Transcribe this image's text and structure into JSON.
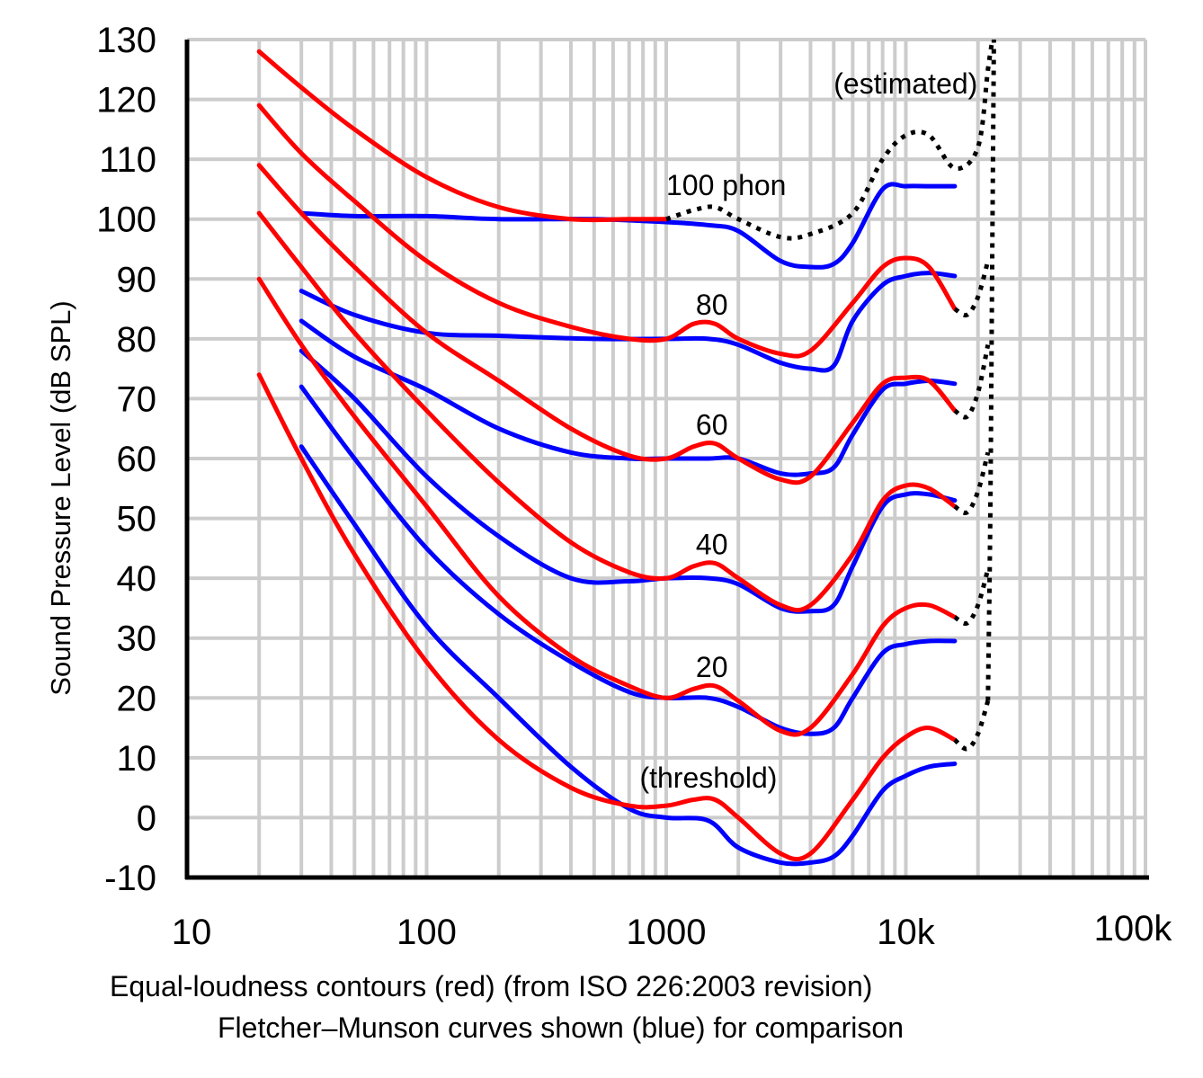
{
  "chart_data": {
    "type": "line",
    "xscale": "log",
    "xlim": [
      10,
      100000
    ],
    "ylim": [
      -10,
      130
    ],
    "grid": true,
    "ylabel": "Sound Pressure Level (dB SPL)",
    "xlabel": "",
    "caption_lines": [
      "Equal-loudness contours (red) (from ISO 226:2003 revision)",
      "Fletcher–Munson curves shown (blue) for comparison"
    ],
    "yticks": [
      {
        "v": 130,
        "label": "130"
      },
      {
        "v": 120,
        "label": "120"
      },
      {
        "v": 110,
        "label": "110"
      },
      {
        "v": 100,
        "label": "100"
      },
      {
        "v": 90,
        "label": "90"
      },
      {
        "v": 80,
        "label": "80"
      },
      {
        "v": 70,
        "label": "70"
      },
      {
        "v": 60,
        "label": "60"
      },
      {
        "v": 50,
        "label": "50"
      },
      {
        "v": 40,
        "label": "40"
      },
      {
        "v": 30,
        "label": "30"
      },
      {
        "v": 20,
        "label": "20"
      },
      {
        "v": 10,
        "label": "10"
      },
      {
        "v": 0,
        "label": "0"
      },
      {
        "v": -10,
        "label": "-10"
      }
    ],
    "xticks": [
      {
        "v": 10,
        "label": "10"
      },
      {
        "v": 100,
        "label": "100"
      },
      {
        "v": 1000,
        "label": "1000"
      },
      {
        "v": 10000,
        "label": "10k"
      },
      {
        "v": 100000,
        "label": "100k"
      }
    ],
    "annotations": [
      {
        "text": "(estimated)",
        "x": 5000,
        "y": 121
      },
      {
        "text": "100 phon",
        "x": 1000,
        "y": 104
      },
      {
        "text": "80",
        "x": 1550,
        "y": 84
      },
      {
        "text": "60",
        "x": 1550,
        "y": 64
      },
      {
        "text": "40",
        "x": 1550,
        "y": 44
      },
      {
        "text": "20",
        "x": 1550,
        "y": 23.5
      },
      {
        "text": "(threshold)",
        "x": 1500,
        "y": 5
      }
    ],
    "series": [
      {
        "group": "red",
        "color": "#ff0000",
        "points": [
          [
            20,
            128
          ],
          [
            30,
            122
          ],
          [
            50,
            115
          ],
          [
            100,
            107
          ],
          [
            200,
            102
          ],
          [
            400,
            100
          ],
          [
            700,
            100
          ],
          [
            1000,
            100
          ]
        ]
      },
      {
        "group": "red",
        "color": "#ff0000",
        "points": [
          [
            20,
            119
          ],
          [
            30,
            111
          ],
          [
            50,
            103
          ],
          [
            100,
            93
          ],
          [
            200,
            86
          ],
          [
            400,
            82
          ],
          [
            700,
            80
          ],
          [
            1000,
            80
          ],
          [
            1300,
            82.5
          ],
          [
            1600,
            82.5
          ],
          [
            2000,
            80
          ],
          [
            3000,
            77.5
          ],
          [
            4000,
            78
          ],
          [
            6000,
            86
          ],
          [
            8000,
            92
          ],
          [
            10000,
            93.5
          ],
          [
            12500,
            92
          ],
          [
            16000,
            85
          ]
        ]
      },
      {
        "group": "red",
        "color": "#ff0000",
        "points": [
          [
            20,
            109
          ],
          [
            30,
            101
          ],
          [
            50,
            92
          ],
          [
            100,
            81
          ],
          [
            200,
            73
          ],
          [
            400,
            65
          ],
          [
            700,
            60.5
          ],
          [
            1000,
            60
          ],
          [
            1300,
            62
          ],
          [
            1600,
            62.5
          ],
          [
            2000,
            60
          ],
          [
            3000,
            56.5
          ],
          [
            4000,
            57
          ],
          [
            6000,
            66
          ],
          [
            8000,
            72.5
          ],
          [
            10000,
            73.5
          ],
          [
            12500,
            73
          ],
          [
            16000,
            68
          ]
        ]
      },
      {
        "group": "red",
        "color": "#ff0000",
        "points": [
          [
            20,
            101
          ],
          [
            30,
            92
          ],
          [
            50,
            81
          ],
          [
            100,
            68
          ],
          [
            200,
            56
          ],
          [
            400,
            46
          ],
          [
            700,
            41
          ],
          [
            1000,
            40
          ],
          [
            1300,
            42
          ],
          [
            1600,
            42.5
          ],
          [
            2000,
            40
          ],
          [
            3000,
            35.5
          ],
          [
            4000,
            35.5
          ],
          [
            6000,
            44
          ],
          [
            8000,
            53
          ],
          [
            10000,
            55.5
          ],
          [
            12500,
            55
          ],
          [
            16000,
            52
          ]
        ]
      },
      {
        "group": "red",
        "color": "#ff0000",
        "points": [
          [
            20,
            90
          ],
          [
            30,
            79
          ],
          [
            50,
            67
          ],
          [
            100,
            52
          ],
          [
            200,
            37
          ],
          [
            400,
            27
          ],
          [
            700,
            22
          ],
          [
            1000,
            20
          ],
          [
            1300,
            21.5
          ],
          [
            1600,
            22
          ],
          [
            2000,
            19.5
          ],
          [
            3000,
            14.5
          ],
          [
            4000,
            15
          ],
          [
            6000,
            24
          ],
          [
            8000,
            32
          ],
          [
            10000,
            35
          ],
          [
            12500,
            35.5
          ],
          [
            16000,
            33.5
          ]
        ]
      },
      {
        "group": "red",
        "color": "#ff0000",
        "points": [
          [
            20,
            74
          ],
          [
            30,
            60
          ],
          [
            50,
            44
          ],
          [
            100,
            26
          ],
          [
            200,
            13
          ],
          [
            400,
            5
          ],
          [
            700,
            2
          ],
          [
            1000,
            2
          ],
          [
            1300,
            3
          ],
          [
            1600,
            3
          ],
          [
            2000,
            0
          ],
          [
            3000,
            -6
          ],
          [
            4000,
            -6
          ],
          [
            6000,
            3
          ],
          [
            8000,
            10
          ],
          [
            10000,
            13.5
          ],
          [
            12500,
            15
          ],
          [
            16000,
            13
          ]
        ]
      },
      {
        "group": "blue",
        "color": "#0000ff",
        "points": [
          [
            30,
            101
          ],
          [
            50,
            100.5
          ],
          [
            100,
            100.5
          ],
          [
            200,
            100
          ],
          [
            500,
            100
          ],
          [
            1000,
            99.5
          ],
          [
            1500,
            99
          ],
          [
            2000,
            98
          ],
          [
            3000,
            93
          ],
          [
            4000,
            92
          ],
          [
            5000,
            92.5
          ],
          [
            6000,
            96
          ],
          [
            8000,
            105
          ],
          [
            10000,
            105.5
          ],
          [
            12500,
            105.5
          ],
          [
            16000,
            105.5
          ]
        ]
      },
      {
        "group": "blue",
        "color": "#0000ff",
        "points": [
          [
            30,
            88
          ],
          [
            50,
            84
          ],
          [
            100,
            81
          ],
          [
            200,
            80.5
          ],
          [
            500,
            80
          ],
          [
            1000,
            80
          ],
          [
            1500,
            80
          ],
          [
            2000,
            79
          ],
          [
            3000,
            76
          ],
          [
            4000,
            75
          ],
          [
            5000,
            75.5
          ],
          [
            6000,
            83
          ],
          [
            8000,
            89
          ],
          [
            10000,
            90.5
          ],
          [
            12500,
            91
          ],
          [
            16000,
            90.5
          ]
        ]
      },
      {
        "group": "blue",
        "color": "#0000ff",
        "points": [
          [
            30,
            83
          ],
          [
            50,
            77
          ],
          [
            100,
            71.5
          ],
          [
            200,
            65
          ],
          [
            400,
            61
          ],
          [
            700,
            60
          ],
          [
            1000,
            60
          ],
          [
            1500,
            60
          ],
          [
            2000,
            60
          ],
          [
            3000,
            57.5
          ],
          [
            4000,
            57.5
          ],
          [
            5000,
            58.5
          ],
          [
            6000,
            64
          ],
          [
            8000,
            71.5
          ],
          [
            10000,
            72.5
          ],
          [
            12500,
            73
          ],
          [
            16000,
            72.5
          ]
        ]
      },
      {
        "group": "blue",
        "color": "#0000ff",
        "points": [
          [
            30,
            78
          ],
          [
            50,
            70
          ],
          [
            100,
            57
          ],
          [
            200,
            47
          ],
          [
            400,
            40
          ],
          [
            700,
            39.5
          ],
          [
            1000,
            40
          ],
          [
            1500,
            40
          ],
          [
            2000,
            39
          ],
          [
            3000,
            35
          ],
          [
            4000,
            34.5
          ],
          [
            5000,
            35.5
          ],
          [
            6000,
            42
          ],
          [
            8000,
            52
          ],
          [
            10000,
            54
          ],
          [
            12500,
            54
          ],
          [
            16000,
            53
          ]
        ]
      },
      {
        "group": "blue",
        "color": "#0000ff",
        "points": [
          [
            30,
            72
          ],
          [
            50,
            60
          ],
          [
            100,
            45
          ],
          [
            200,
            34
          ],
          [
            400,
            26
          ],
          [
            700,
            21
          ],
          [
            1000,
            20
          ],
          [
            1500,
            20
          ],
          [
            2000,
            18.5
          ],
          [
            3000,
            15
          ],
          [
            4000,
            14
          ],
          [
            5000,
            15
          ],
          [
            6000,
            20
          ],
          [
            8000,
            27.5
          ],
          [
            10000,
            29
          ],
          [
            12500,
            29.5
          ],
          [
            16000,
            29.5
          ]
        ]
      },
      {
        "group": "blue",
        "color": "#0000ff",
        "points": [
          [
            30,
            62
          ],
          [
            50,
            49
          ],
          [
            100,
            32
          ],
          [
            200,
            20
          ],
          [
            400,
            8.5
          ],
          [
            700,
            1.5
          ],
          [
            1000,
            0
          ],
          [
            1500,
            -0.5
          ],
          [
            2000,
            -5
          ],
          [
            3000,
            -7.5
          ],
          [
            4000,
            -7.5
          ],
          [
            5000,
            -6.5
          ],
          [
            6000,
            -3
          ],
          [
            8000,
            4.5
          ],
          [
            10000,
            7
          ],
          [
            12500,
            8.5
          ],
          [
            16000,
            9
          ]
        ]
      },
      {
        "group": "estimated",
        "color": "#000000",
        "dashed": true,
        "points": [
          [
            1000,
            100
          ],
          [
            1300,
            101.5
          ],
          [
            1600,
            102
          ],
          [
            2000,
            100
          ],
          [
            3000,
            97
          ],
          [
            4000,
            97.5
          ],
          [
            6000,
            101
          ],
          [
            8000,
            110
          ],
          [
            10000,
            114
          ],
          [
            12500,
            114
          ],
          [
            16000,
            108.5
          ],
          [
            20000,
            112
          ],
          [
            22000,
            125
          ],
          [
            23000,
            130
          ]
        ]
      },
      {
        "group": "estimated",
        "color": "#000000",
        "dashed": true,
        "points": [
          [
            16000,
            85
          ],
          [
            18000,
            84
          ],
          [
            20000,
            87
          ],
          [
            22000,
            93
          ]
        ]
      },
      {
        "group": "estimated",
        "color": "#000000",
        "dashed": true,
        "points": [
          [
            16000,
            68
          ],
          [
            18000,
            67
          ],
          [
            20000,
            71
          ],
          [
            22000,
            79
          ]
        ]
      },
      {
        "group": "estimated",
        "color": "#000000",
        "dashed": true,
        "points": [
          [
            16000,
            52
          ],
          [
            18000,
            51
          ],
          [
            20000,
            54.5
          ],
          [
            22000,
            61
          ]
        ]
      },
      {
        "group": "estimated",
        "color": "#000000",
        "dashed": true,
        "points": [
          [
            16000,
            33.5
          ],
          [
            18000,
            32.5
          ],
          [
            20000,
            35.5
          ],
          [
            22000,
            41.5
          ]
        ]
      },
      {
        "group": "estimated",
        "color": "#000000",
        "dashed": true,
        "points": [
          [
            16000,
            13
          ],
          [
            18000,
            11.5
          ],
          [
            20000,
            14
          ],
          [
            22000,
            19.5
          ]
        ]
      },
      {
        "group": "estimated",
        "color": "#000000",
        "dashed": true,
        "points": [
          [
            22000,
            19.5
          ],
          [
            22500,
            50
          ],
          [
            23000,
            100
          ],
          [
            23300,
            130
          ]
        ]
      }
    ]
  }
}
